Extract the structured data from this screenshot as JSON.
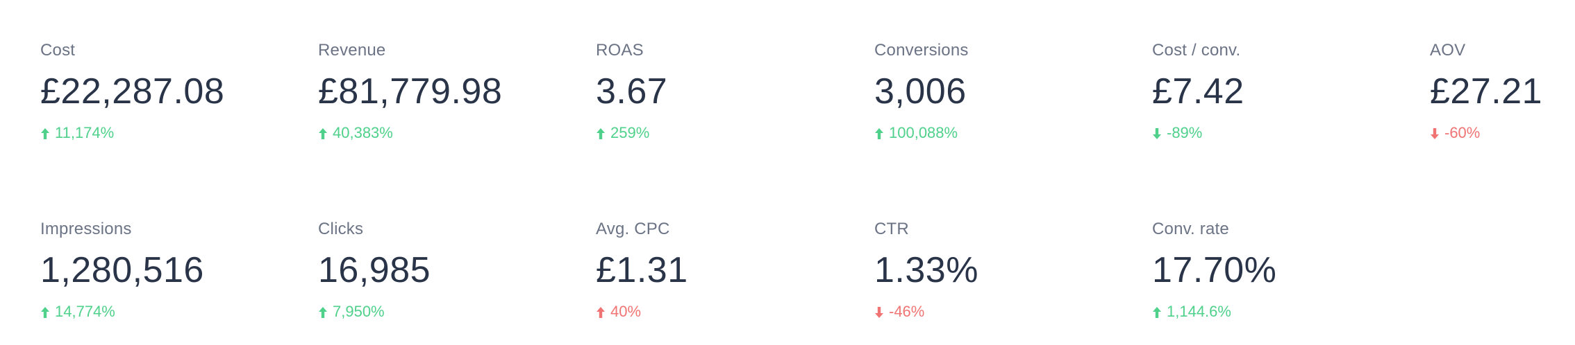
{
  "kpis_row_1": [
    {
      "label": "Cost",
      "value": "£22,287.08",
      "change": "11,174%",
      "direction": "up",
      "sentiment": "positive"
    },
    {
      "label": "Revenue",
      "value": "£81,779.98",
      "change": "40,383%",
      "direction": "up",
      "sentiment": "positive"
    },
    {
      "label": "ROAS",
      "value": "3.67",
      "change": "259%",
      "direction": "up",
      "sentiment": "positive"
    },
    {
      "label": "Conversions",
      "value": "3,006",
      "change": "100,088%",
      "direction": "up",
      "sentiment": "positive"
    },
    {
      "label": "Cost / conv.",
      "value": "£7.42",
      "change": "-89%",
      "direction": "down",
      "sentiment": "positive"
    },
    {
      "label": "AOV",
      "value": "£27.21",
      "change": "-60%",
      "direction": "down",
      "sentiment": "negative"
    }
  ],
  "kpis_row_2": [
    {
      "label": "Impressions",
      "value": "1,280,516",
      "change": "14,774%",
      "direction": "up",
      "sentiment": "positive"
    },
    {
      "label": "Clicks",
      "value": "16,985",
      "change": "7,950%",
      "direction": "up",
      "sentiment": "positive"
    },
    {
      "label": "Avg. CPC",
      "value": "£1.31",
      "change": "40%",
      "direction": "up",
      "sentiment": "negative"
    },
    {
      "label": "CTR",
      "value": "1.33%",
      "change": "-46%",
      "direction": "down",
      "sentiment": "negative"
    },
    {
      "label": "Conv. rate",
      "value": "17.70%",
      "change": "1,144.6%",
      "direction": "up",
      "sentiment": "positive"
    }
  ],
  "colors": {
    "positive": "#4fd18b",
    "negative": "#f07474",
    "label": "#6b7385",
    "value": "#2a3448"
  },
  "icons": {
    "up": "arrow-up-icon",
    "down": "arrow-down-icon"
  }
}
